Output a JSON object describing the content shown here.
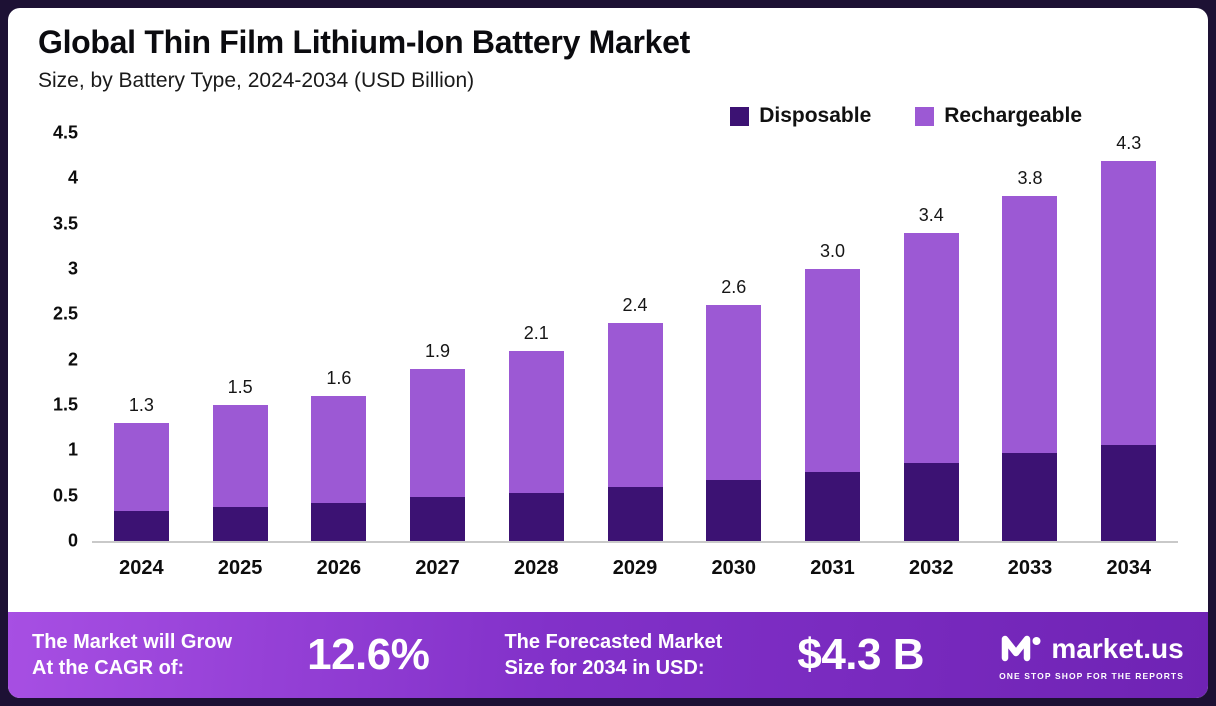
{
  "chart_data": {
    "type": "bar",
    "stacked": true,
    "title": "Global Thin Film Lithium-Ion Battery Market",
    "subtitle": "Size, by Battery Type, 2024-2034 (USD Billion)",
    "categories": [
      "2024",
      "2025",
      "2026",
      "2027",
      "2028",
      "2029",
      "2030",
      "2031",
      "2032",
      "2033",
      "2034"
    ],
    "series": [
      {
        "name": "Disposable",
        "color": "#3c1273",
        "values": [
          0.33,
          0.37,
          0.42,
          0.48,
          0.53,
          0.6,
          0.67,
          0.76,
          0.86,
          0.97,
          1.09
        ]
      },
      {
        "name": "Rechargeable",
        "color": "#9c59d4",
        "values": [
          0.97,
          1.13,
          1.18,
          1.42,
          1.57,
          1.8,
          1.93,
          2.24,
          2.54,
          2.83,
          3.21
        ]
      }
    ],
    "totals": [
      "1.3",
      "1.5",
      "1.6",
      "1.9",
      "2.1",
      "2.4",
      "2.6",
      "3.0",
      "3.4",
      "3.8",
      "4.3"
    ],
    "y_ticks": [
      "4.5",
      "4",
      "3.5",
      "3",
      "2.5",
      "2",
      "1.5",
      "1",
      "0.5",
      "0"
    ],
    "ylim": [
      0,
      4.5
    ],
    "legend_position": "top-right",
    "grid": false
  },
  "footer": {
    "cagr_label_line1": "The Market will Grow",
    "cagr_label_line2": "At the CAGR of:",
    "cagr_value": "12.6%",
    "forecast_label_line1": "The Forecasted Market",
    "forecast_label_line2": "Size for 2034 in USD:",
    "forecast_value": "$4.3 B",
    "brand_name": "market.us",
    "brand_tagline": "ONE STOP SHOP FOR THE REPORTS"
  }
}
